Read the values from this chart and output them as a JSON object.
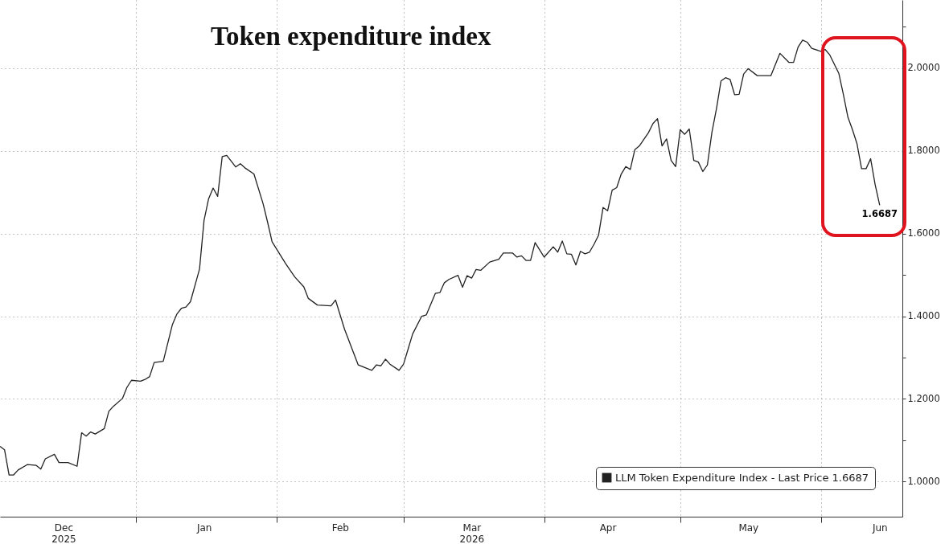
{
  "chart_data": {
    "type": "line",
    "title": "Token expenditure index",
    "x": [
      "2025-12-02",
      "2025-12-03",
      "2025-12-04",
      "2025-12-05",
      "2025-12-06",
      "2025-12-08",
      "2025-12-10",
      "2025-12-11",
      "2025-12-12",
      "2025-12-14",
      "2025-12-15",
      "2025-12-17",
      "2025-12-19",
      "2025-12-20",
      "2025-12-21",
      "2025-12-22",
      "2025-12-23",
      "2025-12-25",
      "2025-12-26",
      "2025-12-27",
      "2025-12-29",
      "2025-12-30",
      "2025-12-31",
      "2026-01-02",
      "2026-01-03",
      "2026-01-04",
      "2026-01-05",
      "2026-01-07",
      "2026-01-09",
      "2026-01-10",
      "2026-01-11",
      "2026-01-12",
      "2026-01-13",
      "2026-01-15",
      "2026-01-16",
      "2026-01-17",
      "2026-01-18",
      "2026-01-19",
      "2026-01-20",
      "2026-01-21",
      "2026-01-23",
      "2026-01-24",
      "2026-01-25",
      "2026-01-27",
      "2026-01-29",
      "2026-01-30",
      "2026-01-31",
      "2026-02-03",
      "2026-02-05",
      "2026-02-07",
      "2026-02-08",
      "2026-02-10",
      "2026-02-13",
      "2026-02-14",
      "2026-02-16",
      "2026-02-19",
      "2026-02-22",
      "2026-02-23",
      "2026-02-24",
      "2026-02-25",
      "2026-02-26",
      "2026-02-28",
      "2026-03-01",
      "2026-03-03",
      "2026-03-05",
      "2026-03-06",
      "2026-03-08",
      "2026-03-09",
      "2026-03-10",
      "2026-03-11",
      "2026-03-13",
      "2026-03-14",
      "2026-03-15",
      "2026-03-16",
      "2026-03-17",
      "2026-03-18",
      "2026-03-20",
      "2026-03-22",
      "2026-03-23",
      "2026-03-25",
      "2026-03-26",
      "2026-03-27",
      "2026-03-28",
      "2026-03-29",
      "2026-03-30",
      "2026-04-01",
      "2026-04-03",
      "2026-04-04",
      "2026-04-05",
      "2026-04-06",
      "2026-04-07",
      "2026-04-08",
      "2026-04-09",
      "2026-04-10",
      "2026-04-11",
      "2026-04-12",
      "2026-04-13",
      "2026-04-14",
      "2026-04-15",
      "2026-04-16",
      "2026-04-17",
      "2026-04-18",
      "2026-04-19",
      "2026-04-20",
      "2026-04-21",
      "2026-04-22",
      "2026-04-24",
      "2026-04-25",
      "2026-04-26",
      "2026-04-27",
      "2026-04-28",
      "2026-04-29",
      "2026-04-30",
      "2026-05-01",
      "2026-05-02",
      "2026-05-03",
      "2026-05-04",
      "2026-05-05",
      "2026-05-06",
      "2026-05-07",
      "2026-05-08",
      "2026-05-09",
      "2026-05-10",
      "2026-05-11",
      "2026-05-12",
      "2026-05-13",
      "2026-05-14",
      "2026-05-15",
      "2026-05-16",
      "2026-05-18",
      "2026-05-21",
      "2026-05-23",
      "2026-05-25",
      "2026-05-26",
      "2026-05-27",
      "2026-05-28",
      "2026-05-29",
      "2026-05-30",
      "2026-06-01",
      "2026-06-02",
      "2026-06-03",
      "2026-06-05",
      "2026-06-06",
      "2026-06-07",
      "2026-06-08",
      "2026-06-09",
      "2026-06-10",
      "2026-06-11",
      "2026-06-12",
      "2026-06-13",
      "2026-06-14"
    ],
    "series": [
      {
        "name": "LLM Token Expenditure Index - Last Price 1.6687",
        "color": "#222222",
        "values": [
          1.085,
          1.077,
          1.016,
          1.016,
          1.028,
          1.041,
          1.039,
          1.03,
          1.055,
          1.066,
          1.046,
          1.046,
          1.037,
          1.118,
          1.11,
          1.12,
          1.115,
          1.128,
          1.17,
          1.182,
          1.201,
          1.228,
          1.245,
          1.243,
          1.247,
          1.254,
          1.288,
          1.291,
          1.379,
          1.405,
          1.419,
          1.422,
          1.435,
          1.514,
          1.632,
          1.684,
          1.71,
          1.69,
          1.786,
          1.789,
          1.761,
          1.769,
          1.759,
          1.744,
          1.673,
          1.628,
          1.58,
          1.527,
          1.495,
          1.471,
          1.443,
          1.427,
          1.425,
          1.439,
          1.368,
          1.282,
          1.269,
          1.282,
          1.28,
          1.296,
          1.284,
          1.269,
          1.284,
          1.357,
          1.4,
          1.403,
          1.455,
          1.457,
          1.481,
          1.489,
          1.499,
          1.47,
          1.498,
          1.492,
          1.513,
          1.511,
          1.531,
          1.538,
          1.553,
          1.553,
          1.543,
          1.546,
          1.535,
          1.535,
          1.578,
          1.543,
          1.568,
          1.555,
          1.582,
          1.551,
          1.55,
          1.524,
          1.557,
          1.551,
          1.555,
          1.574,
          1.596,
          1.663,
          1.655,
          1.705,
          1.711,
          1.744,
          1.762,
          1.755,
          1.803,
          1.812,
          1.844,
          1.866,
          1.878,
          1.812,
          1.829,
          1.777,
          1.762,
          1.851,
          1.84,
          1.853,
          1.777,
          1.773,
          1.75,
          1.766,
          1.845,
          1.902,
          1.969,
          1.977,
          1.973,
          1.936,
          1.937,
          1.986,
          1.999,
          1.982,
          1.982,
          2.036,
          2.014,
          2.014,
          2.051,
          2.068,
          2.063,
          2.048,
          2.041,
          2.045,
          2.032,
          1.987,
          1.936,
          1.881,
          1.851,
          1.817,
          1.757,
          1.757,
          1.781,
          1.718,
          1.6687
        ],
        "value_labels": [
          null,
          null,
          null,
          null,
          null,
          null,
          null,
          null,
          null,
          null,
          null,
          null,
          null,
          null,
          null,
          null,
          null,
          null,
          null,
          null,
          null,
          null,
          null,
          null,
          null,
          null,
          null,
          null,
          null,
          null,
          null,
          null,
          null,
          null,
          null,
          null,
          null,
          null,
          null,
          null,
          null,
          null,
          null,
          null,
          null,
          null,
          null,
          null,
          null,
          null,
          null,
          null,
          null,
          null,
          null,
          null,
          null,
          null,
          null,
          null,
          null,
          null,
          null,
          null,
          null,
          null,
          null,
          null,
          null,
          null,
          null,
          null,
          null,
          null,
          null,
          null,
          null,
          null,
          null,
          null,
          null,
          null,
          null,
          null,
          null,
          null,
          null,
          null,
          null,
          null,
          null,
          null,
          null,
          null,
          null,
          null,
          null,
          null,
          null,
          null,
          null,
          null,
          null,
          null,
          null,
          null,
          null,
          null,
          null,
          null,
          null,
          null,
          null,
          null,
          null,
          null,
          null,
          null,
          null,
          null,
          null,
          null,
          null,
          null,
          null,
          null,
          null,
          null,
          null,
          null,
          null,
          null,
          null,
          null,
          null,
          null,
          null,
          null,
          null,
          null,
          null,
          null,
          null,
          null,
          null,
          null,
          null,
          null,
          null,
          null,
          "1.6687"
        ]
      }
    ],
    "xlim": [
      "2025-12-02",
      "2026-06-19"
    ],
    "xticks": [
      {
        "value": "2025-12-16",
        "label": "Dec\n2025"
      },
      {
        "value": "2026-01-01",
        "label": null
      },
      {
        "value": "2026-01-16",
        "label": "Jan"
      },
      {
        "value": "2026-02-01",
        "label": null
      },
      {
        "value": "2026-02-15",
        "label": "Feb"
      },
      {
        "value": "2026-03-01",
        "label": null
      },
      {
        "value": "2026-03-16",
        "label": "Mar\n2026"
      },
      {
        "value": "2026-04-01",
        "label": null
      },
      {
        "value": "2026-04-15",
        "label": "Apr"
      },
      {
        "value": "2026-05-01",
        "label": null
      },
      {
        "value": "2026-05-16",
        "label": "May"
      },
      {
        "value": "2026-06-01",
        "label": null
      },
      {
        "value": "2026-06-14",
        "label": "Jun"
      }
    ],
    "ylim": [
      0.915,
      2.165
    ],
    "yticks": [
      {
        "value": 1,
        "label": "1.0000"
      },
      {
        "value": 1.1,
        "label": null
      },
      {
        "value": 1.2,
        "label": "1.2000"
      },
      {
        "value": 1.3,
        "label": null
      },
      {
        "value": 1.4,
        "label": "1.4000"
      },
      {
        "value": 1.5,
        "label": null
      },
      {
        "value": 1.6,
        "label": "1.6000"
      },
      {
        "value": 1.7,
        "label": null
      },
      {
        "value": 1.8,
        "label": "1.8000"
      },
      {
        "value": 1.9,
        "label": null
      },
      {
        "value": 2,
        "label": "2.0000"
      },
      {
        "value": 2.1,
        "label": null
      }
    ],
    "grid": true,
    "legend": "bottom right"
  }
}
